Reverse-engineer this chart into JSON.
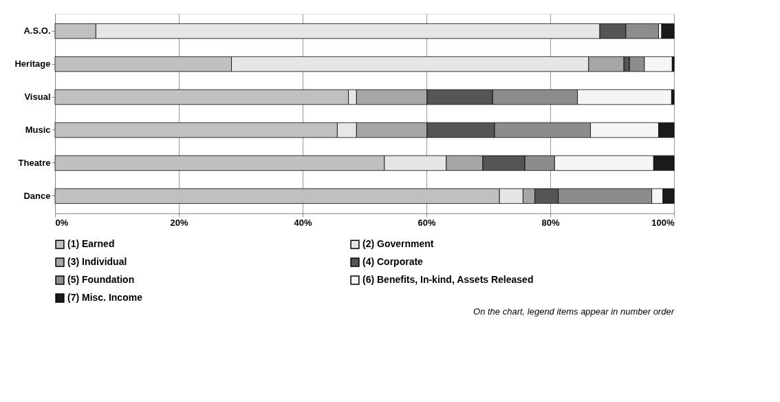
{
  "chart_data": {
    "type": "bar",
    "orientation": "horizontal",
    "stacked": true,
    "categories": [
      "A.S.O.",
      "Heritage",
      "Visual",
      "Music",
      "Theatre",
      "Dance"
    ],
    "series": [
      {
        "name": "(1) Earned",
        "color": "#c0c0c0",
        "values": [
          6.6,
          28.5,
          47.4,
          45.6,
          53.2,
          71.8
        ]
      },
      {
        "name": "(2) Government",
        "color": "#e6e6e6",
        "values": [
          81.4,
          57.7,
          1.3,
          3.1,
          10.0,
          3.8
        ]
      },
      {
        "name": "(3) Individual",
        "color": "#a6a6a6",
        "values": [
          null,
          5.7,
          11.4,
          11.4,
          5.9,
          1.9
        ]
      },
      {
        "name": "(4) Corporate",
        "color": "#555555",
        "values": [
          4.2,
          0.9,
          10.6,
          10.9,
          6.8,
          3.8
        ]
      },
      {
        "name": "(5) Foundation",
        "color": "#8c8c8c",
        "values": [
          5.3,
          2.4,
          13.7,
          15.5,
          4.8,
          15.1
        ]
      },
      {
        "name": "(6) Benefits, In-kind, Assets Released",
        "color": "#f5f5f5",
        "values": [
          0.5,
          4.5,
          15.2,
          11.0,
          16.0,
          1.8
        ]
      },
      {
        "name": "(7) Misc. Income",
        "color": "#1a1a1a",
        "values": [
          2.0,
          0.3,
          0.4,
          2.5,
          3.3,
          1.8
        ]
      }
    ],
    "xlim": [
      0,
      100
    ],
    "xticks": [
      {
        "value": 0,
        "label": "0%"
      },
      {
        "value": 20,
        "label": "20%"
      },
      {
        "value": 40,
        "label": "40%"
      },
      {
        "value": 60,
        "label": "60%"
      },
      {
        "value": 80,
        "label": "80%"
      },
      {
        "value": 100,
        "label": "100%"
      }
    ],
    "grid": "x",
    "legend": "bottom",
    "annotations": [
      "On the chart, legend items appear in number order"
    ]
  }
}
